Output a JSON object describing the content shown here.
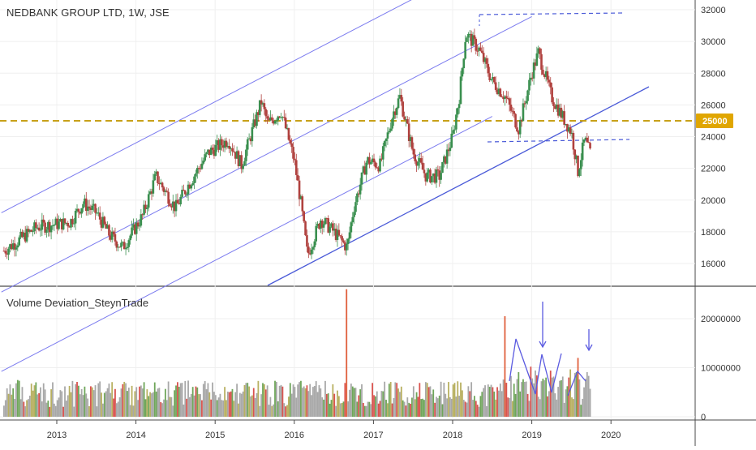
{
  "header": {
    "title": "NEDBANK GROUP LTD, 1W, JSE",
    "indicator_title": "Volume Deviation_SteynTrade"
  },
  "colors": {
    "up_candle": "#3a8f4f",
    "down_candle": "#b0413e",
    "channel_line": "#7b7bef",
    "support_line": "#4a5ad8",
    "level_line": "#c8a11a",
    "price_tag_bg": "#e0a600",
    "vol_normal": "#a8a8a8",
    "vol_up": "#6fa65a",
    "vol_down": "#d9534f",
    "vol_mid": "#b8b060",
    "vol_spike": "#e0603d",
    "annotation": "#5a5ae0"
  },
  "chart_data": [
    {
      "type": "candlestick",
      "title": "NEDBANK GROUP LTD, 1W, JSE",
      "xlabel": "",
      "ylabel": "",
      "x_ticks": [
        "2013",
        "2014",
        "2015",
        "2016",
        "2017",
        "2018",
        "2019",
        "2020"
      ],
      "y_ticks": [
        16000,
        18000,
        20000,
        22000,
        24000,
        26000,
        28000,
        30000,
        32000
      ],
      "ylim": [
        14500,
        32500
      ],
      "highlight_level": {
        "value": 25000,
        "label": "25000"
      },
      "approx_path": [
        [
          "2012-05",
          16800
        ],
        [
          "2012-10",
          18300
        ],
        [
          "2013-03",
          18600
        ],
        [
          "2013-05",
          19800
        ],
        [
          "2013-07",
          19200
        ],
        [
          "2013-09",
          17800
        ],
        [
          "2013-11",
          17000
        ],
        [
          "2014-02",
          19000
        ],
        [
          "2014-04",
          21500
        ],
        [
          "2014-07",
          19500
        ],
        [
          "2014-09",
          21000
        ],
        [
          "2014-12",
          23000
        ],
        [
          "2015-03",
          23800
        ],
        [
          "2015-05",
          22200
        ],
        [
          "2015-08",
          26200
        ],
        [
          "2015-09",
          24800
        ],
        [
          "2015-11",
          25600
        ],
        [
          "2016-01",
          22500
        ],
        [
          "2016-02",
          19800
        ],
        [
          "2016-03",
          16500
        ],
        [
          "2016-05",
          18800
        ],
        [
          "2016-07",
          18000
        ],
        [
          "2016-09",
          17000
        ],
        [
          "2016-10",
          19500
        ],
        [
          "2016-12",
          22500
        ],
        [
          "2017-02",
          22200
        ],
        [
          "2017-04",
          25500
        ],
        [
          "2017-05",
          26500
        ],
        [
          "2017-07",
          23000
        ],
        [
          "2017-09",
          21500
        ],
        [
          "2017-11",
          21500
        ],
        [
          "2018-01",
          24000
        ],
        [
          "2018-02",
          26500
        ],
        [
          "2018-03",
          30500
        ],
        [
          "2018-05",
          29500
        ],
        [
          "2018-07",
          27500
        ],
        [
          "2018-09",
          26500
        ],
        [
          "2018-11",
          24500
        ],
        [
          "2019-01",
          28000
        ],
        [
          "2019-02",
          29300
        ],
        [
          "2019-04",
          26500
        ],
        [
          "2019-06",
          25000
        ],
        [
          "2019-07",
          24300
        ],
        [
          "2019-08",
          21800
        ],
        [
          "2019-09",
          23800
        ],
        [
          "2019-10",
          22800
        ]
      ]
    },
    {
      "type": "bar",
      "title": "Volume Deviation_SteynTrade",
      "y_ticks": [
        0,
        10000000,
        20000000
      ],
      "ylim": [
        0,
        26000000
      ],
      "notable_bars": [
        {
          "x": "2016-09",
          "value": 26000000
        },
        {
          "x": "2018-09",
          "value": 20500000
        },
        {
          "x": "2019-08",
          "value": 12000000
        }
      ]
    }
  ]
}
